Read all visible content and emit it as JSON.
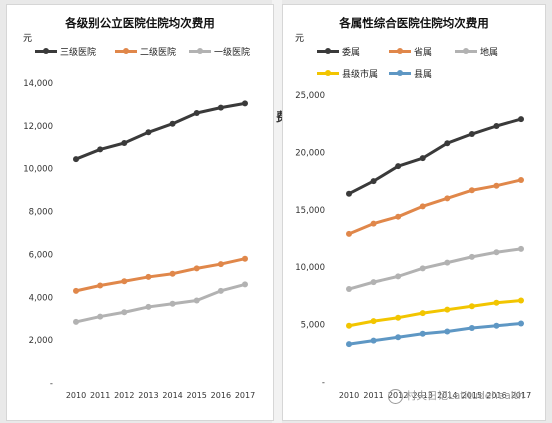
{
  "chart_data": [
    {
      "type": "line",
      "title": "各级别公立医院住院均次费用",
      "unit_label": "元",
      "x": [
        "2010",
        "2011",
        "2012",
        "2013",
        "2014",
        "2015",
        "2016",
        "2017"
      ],
      "ylim": [
        0,
        14000
      ],
      "yticks": [
        "-",
        "2,000",
        "4,000",
        "6,000",
        "8,000",
        "10,000",
        "12,000",
        "14,000"
      ],
      "ytick_values": [
        0,
        2000,
        4000,
        6000,
        8000,
        10000,
        12000,
        14000
      ],
      "grid": false,
      "legend_position": "top",
      "series": [
        {
          "name": "三级医院",
          "color": "#3a3a3a",
          "values": [
            10450,
            10900,
            11200,
            11700,
            12100,
            12600,
            12850,
            13050
          ]
        },
        {
          "name": "二级医院",
          "color": "#e0874a",
          "values": [
            4300,
            4550,
            4750,
            4950,
            5100,
            5350,
            5550,
            5800
          ]
        },
        {
          "name": "一级医院",
          "color": "#b2b2b2",
          "values": [
            2850,
            3100,
            3300,
            3550,
            3700,
            3850,
            4300,
            4600
          ]
        }
      ]
    },
    {
      "type": "line",
      "title": "各属性综合医院住院均次费用",
      "unit_label": "元",
      "x": [
        "2010",
        "2011",
        "2012",
        "2013",
        "2014",
        "2015",
        "2016",
        "2017"
      ],
      "ylim": [
        0,
        25000
      ],
      "yticks": [
        "-",
        "5,000",
        "10,000",
        "15,000",
        "20,000",
        "25,000"
      ],
      "ytick_values": [
        0,
        5000,
        10000,
        15000,
        20000,
        25000
      ],
      "grid": false,
      "legend_position": "top",
      "series": [
        {
          "name": "委属",
          "color": "#3a3a3a",
          "values": [
            16400,
            17500,
            18800,
            19500,
            20800,
            21600,
            22300,
            22900
          ]
        },
        {
          "name": "省属",
          "color": "#e0874a",
          "values": [
            12900,
            13800,
            14400,
            15300,
            16000,
            16700,
            17100,
            17600
          ]
        },
        {
          "name": "地属",
          "color": "#b2b2b2",
          "values": [
            8100,
            8700,
            9200,
            9900,
            10400,
            10900,
            11300,
            11600
          ]
        },
        {
          "name": "县级市属",
          "color": "#f2c500",
          "values": [
            4900,
            5300,
            5600,
            6000,
            6300,
            6600,
            6900,
            7100
          ]
        },
        {
          "name": "县属",
          "color": "#5e97c4",
          "values": [
            3300,
            3600,
            3900,
            4200,
            4400,
            4700,
            4900,
            5100
          ]
        }
      ]
    }
  ],
  "background_fragment": "费",
  "watermark": "村夫日记Latitudehealth"
}
